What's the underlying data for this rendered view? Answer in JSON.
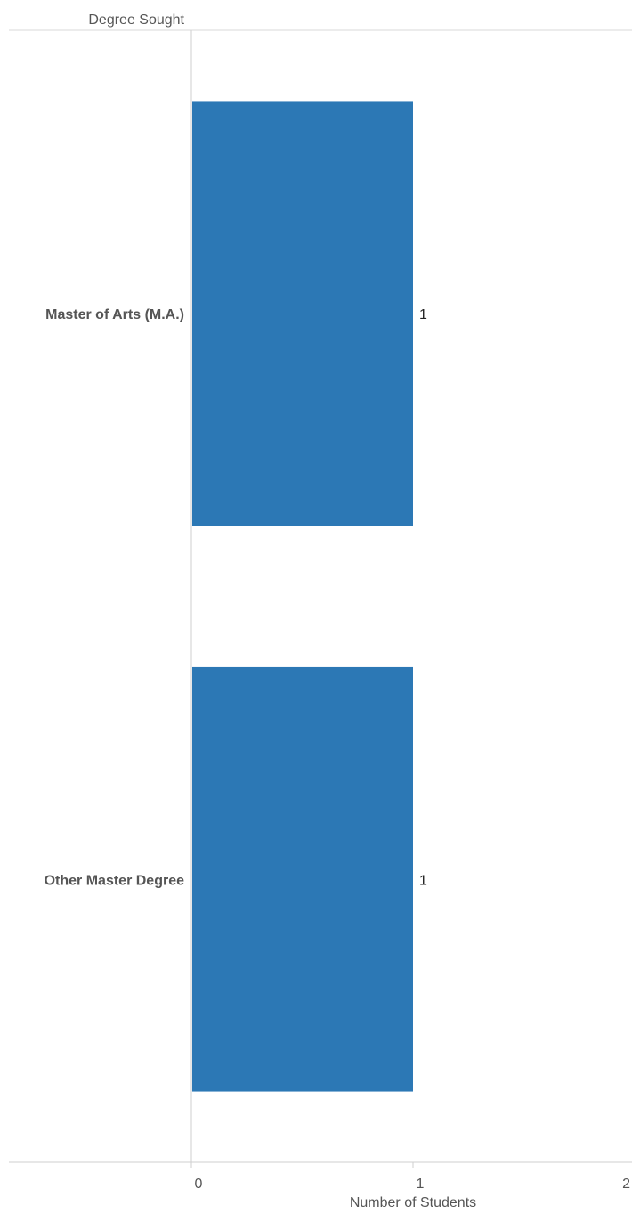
{
  "chart_data": {
    "type": "bar",
    "orientation": "horizontal",
    "row_header": "Degree Sought",
    "categories": [
      "Master of Arts (M.A.)",
      "Other Master Degree"
    ],
    "values": [
      1,
      1
    ],
    "data_labels": [
      "1",
      "1"
    ],
    "xlabel": "Number of Students",
    "xlim": [
      0,
      2
    ],
    "xticks": [
      "0",
      "1",
      "2"
    ],
    "bar_color": "#2c78b5",
    "grid": false
  }
}
